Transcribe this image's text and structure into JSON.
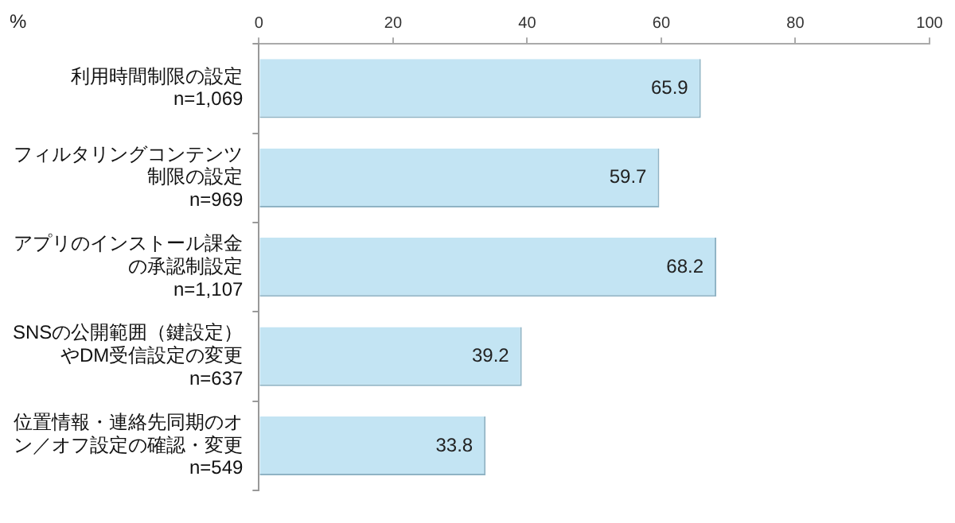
{
  "chart_data": {
    "type": "bar",
    "orientation": "horizontal",
    "xlabel": "%",
    "categories": [
      "利用時間制限の設定\nn=1,069",
      "フィルタリングコンテンツ制限の設定\nn=969",
      "アプリのインストール課金の承認制設定\nn=1,107",
      "SNSの公開範囲（鍵設定）やDM受信設定の変更\nn=637",
      "位置情報・連絡先同期のオン／オフ設定の確認・変更\nn=549"
    ],
    "values": [
      65.9,
      59.7,
      68.2,
      39.2,
      33.8
    ],
    "color": "#c3e4f3",
    "xlim": [
      0,
      100
    ],
    "xticks": [
      0,
      20,
      40,
      60,
      80,
      100
    ],
    "grid": false,
    "legend": false,
    "data_labels": true
  }
}
